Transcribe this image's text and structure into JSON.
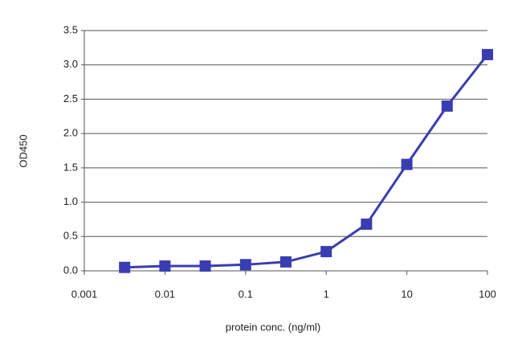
{
  "chart_data": {
    "type": "line",
    "x_label": "protein conc. (ng/ml)",
    "y_label": "OD450",
    "x": [
      0.00316,
      0.01,
      0.0316,
      0.1,
      0.316,
      1,
      3.16,
      10,
      31.6,
      100
    ],
    "series": [
      {
        "name": "OD450",
        "color": "#3a3db0",
        "values": [
          0.05,
          0.07,
          0.07,
          0.09,
          0.13,
          0.28,
          0.68,
          1.55,
          2.4,
          3.15
        ]
      }
    ],
    "xlim": [
      0.001,
      100
    ],
    "x_log": true,
    "xticks": [
      0.001,
      0.01,
      0.1,
      1,
      10,
      100
    ],
    "ylim": [
      0,
      3.5
    ],
    "yticks": [
      {
        "value": 0,
        "label": "0.0"
      },
      0.5,
      {
        "value": 1,
        "label": "1.0"
      },
      1.5,
      {
        "value": 2,
        "label": "2.0"
      },
      2.5,
      {
        "value": 3,
        "label": "3.0"
      },
      3.5
    ],
    "grid": true,
    "marker": "square"
  }
}
